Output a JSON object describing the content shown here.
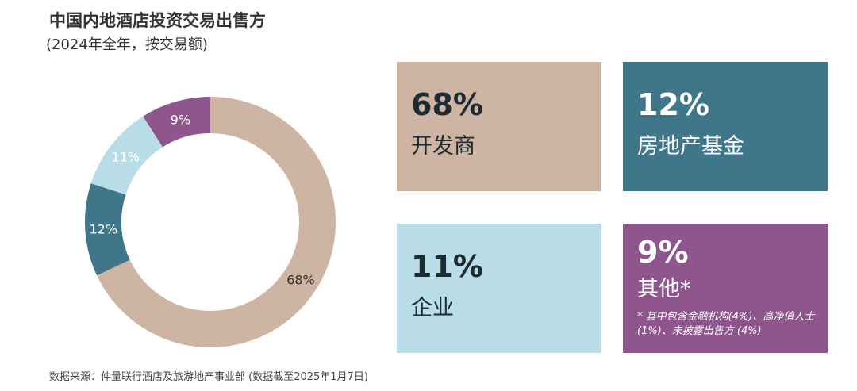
{
  "title": "中国内地酒店投资交易出售方",
  "subtitle": "(2024年全年，按交易额)",
  "chart_data": {
    "type": "pie",
    "donut": true,
    "title": "中国内地酒店投资交易出售方",
    "subtitle": "(2024年全年，按交易额)",
    "categories": [
      "开发商",
      "房地产基金",
      "企业",
      "其他*"
    ],
    "values": [
      68,
      12,
      11,
      9
    ],
    "data_labels": [
      "68%",
      "12%",
      "11%",
      "9%"
    ],
    "colors": [
      "#cdb4a3",
      "#3f7689",
      "#b9dde6",
      "#8e568d"
    ],
    "label_colors": [
      "#333333",
      "#ffffff",
      "#ffffff",
      "#ffffff"
    ]
  },
  "cards": [
    {
      "pct": "68%",
      "label": "开发商",
      "bg": "#cdb4a3",
      "fg": "#1e2b33"
    },
    {
      "pct": "12%",
      "label": "房地产基金",
      "bg": "#3f7689",
      "fg": "#ffffff"
    },
    {
      "pct": "11%",
      "label": "企业",
      "bg": "#b9dde6",
      "fg": "#1e2b33"
    },
    {
      "pct": "9%",
      "label": "其他*",
      "bg": "#8e568d",
      "fg": "#ffffff",
      "note": "* 其中包含金融机构(4%)、高净值人士 (1%)、未披露出售方 (4%)"
    }
  ],
  "source": "数据来源：仲量联行酒店及旅游地产事业部 (数据截至2025年1月7日)"
}
